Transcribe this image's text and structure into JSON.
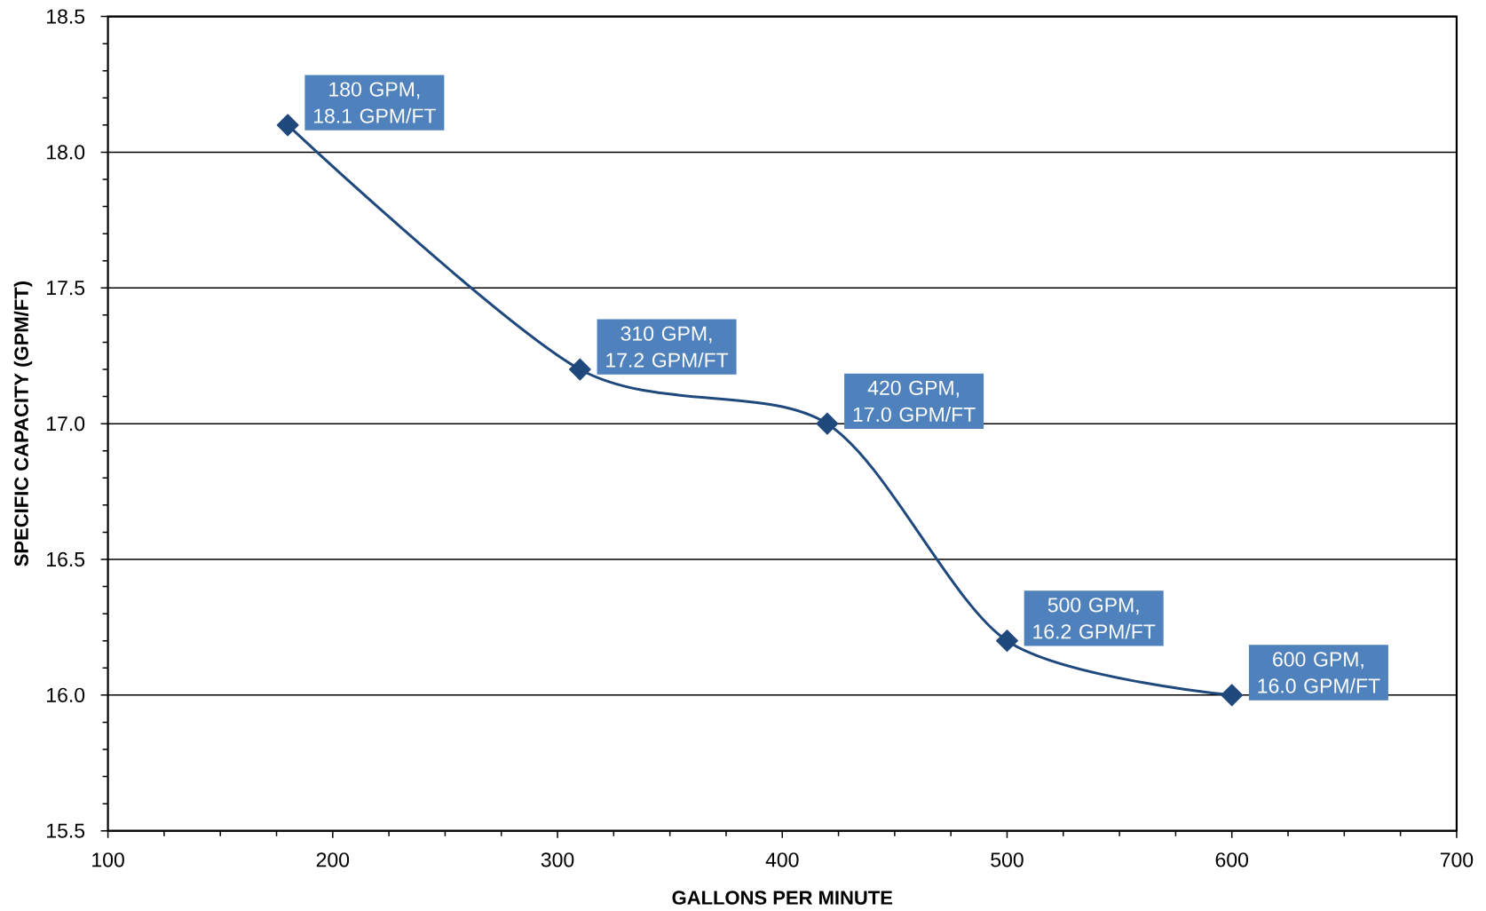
{
  "chart_data": {
    "type": "line",
    "xlabel": "GALLONS PER MINUTE",
    "ylabel": "SPECIFIC CAPACITY (GPM/FT)",
    "x": [
      180,
      310,
      420,
      500,
      600
    ],
    "values": [
      18.1,
      17.2,
      17.0,
      16.2,
      16.0
    ],
    "value_labels": [
      "180 GPM, 18.1 GPM/FT",
      "310 GPM, 17.2 GPM/FT",
      "420 GPM, 17.0 GPM/FT",
      "500 GPM, 16.2 GPM/FT",
      "600 GPM, 16.0 GPM/FT"
    ],
    "color": "#1f497d",
    "xlim": [
      100,
      700
    ],
    "ylim": [
      15.5,
      18.5
    ],
    "xticks": [
      100,
      200,
      300,
      400,
      500,
      600,
      700
    ],
    "yticks": [
      15.5,
      {
        "value": 16,
        "label": "16.0"
      },
      16.5,
      {
        "value": 17,
        "label": "17.0"
      },
      17.5,
      {
        "value": 18,
        "label": "18.0"
      },
      18.5
    ],
    "grid": "y",
    "marker": "diamond",
    "line_style": "solid"
  }
}
